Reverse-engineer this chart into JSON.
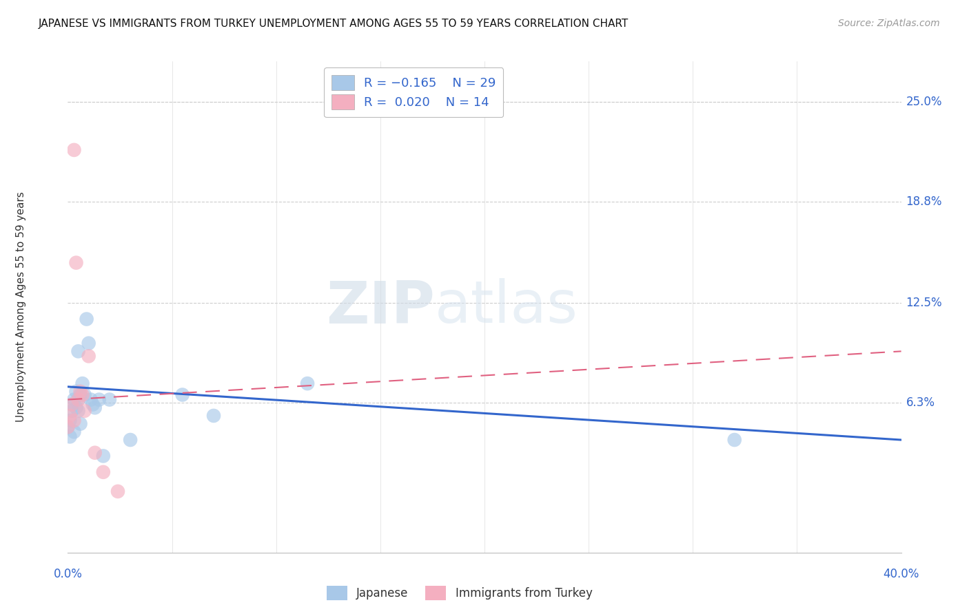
{
  "title": "JAPANESE VS IMMIGRANTS FROM TURKEY UNEMPLOYMENT AMONG AGES 55 TO 59 YEARS CORRELATION CHART",
  "source": "Source: ZipAtlas.com",
  "ylabel": "Unemployment Among Ages 55 to 59 years",
  "ytick_labels": [
    "25.0%",
    "18.8%",
    "12.5%",
    "6.3%"
  ],
  "ytick_values": [
    0.25,
    0.188,
    0.125,
    0.063
  ],
  "xlim": [
    0.0,
    0.4
  ],
  "ylim": [
    -0.03,
    0.275
  ],
  "japanese_color": "#a8c8e8",
  "turkey_color": "#f4afc0",
  "japanese_line_color": "#3366cc",
  "turkey_line_color": "#e06080",
  "watermark_zip": "ZIP",
  "watermark_atlas": "atlas",
  "japanese_x": [
    0.0,
    0.001,
    0.001,
    0.002,
    0.002,
    0.003,
    0.003,
    0.004,
    0.004,
    0.005,
    0.005,
    0.005,
    0.006,
    0.006,
    0.007,
    0.008,
    0.009,
    0.01,
    0.011,
    0.012,
    0.013,
    0.015,
    0.017,
    0.02,
    0.03,
    0.055,
    0.07,
    0.115,
    0.32
  ],
  "japanese_y": [
    0.048,
    0.042,
    0.052,
    0.058,
    0.062,
    0.045,
    0.065,
    0.06,
    0.07,
    0.058,
    0.065,
    0.095,
    0.068,
    0.05,
    0.075,
    0.068,
    0.115,
    0.1,
    0.065,
    0.062,
    0.06,
    0.065,
    0.03,
    0.065,
    0.04,
    0.068,
    0.055,
    0.075,
    0.04
  ],
  "turkey_x": [
    0.0,
    0.001,
    0.002,
    0.003,
    0.003,
    0.004,
    0.005,
    0.006,
    0.007,
    0.008,
    0.01,
    0.013,
    0.017,
    0.024
  ],
  "turkey_y": [
    0.048,
    0.055,
    0.062,
    0.22,
    0.052,
    0.15,
    0.065,
    0.07,
    0.068,
    0.058,
    0.092,
    0.032,
    0.02,
    0.008
  ],
  "japanese_trend_x": [
    0.0,
    0.4
  ],
  "japanese_trend_y": [
    0.073,
    0.04
  ],
  "turkey_trend_x": [
    0.0,
    0.4
  ],
  "turkey_trend_y": [
    0.065,
    0.095
  ]
}
